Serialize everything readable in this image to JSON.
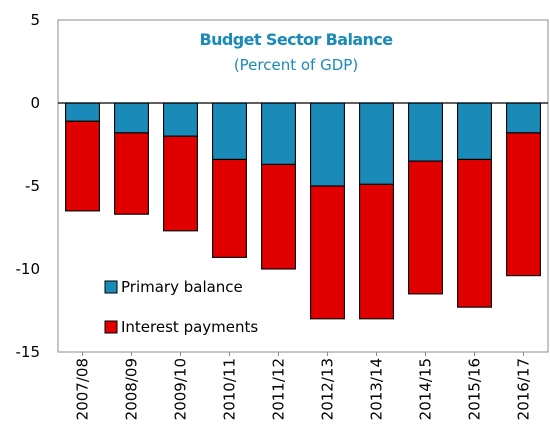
{
  "chart_data": {
    "type": "bar",
    "stacked": true,
    "title": "Budget Sector Balance",
    "subtitle": "(Percent of GDP)",
    "categories": [
      "2007/08",
      "2008/09",
      "2009/10",
      "2010/11",
      "2011/12",
      "2012/13",
      "2013/14",
      "2014/15",
      "2015/16",
      "2016/17"
    ],
    "series": [
      {
        "name": "Primary balance",
        "color": "#1a8ab8",
        "values": [
          -1.1,
          -1.8,
          -2.0,
          -3.4,
          -3.7,
          -5.0,
          -4.9,
          -3.5,
          -3.4,
          -1.8
        ]
      },
      {
        "name": "Interest payments",
        "color": "#e00000",
        "values": [
          -5.4,
          -4.9,
          -5.7,
          -5.9,
          -6.3,
          -8.0,
          -8.1,
          -8.0,
          -8.9,
          -8.6
        ]
      }
    ],
    "ylim": [
      -15,
      5
    ],
    "yticks": [
      5,
      0,
      -5,
      -10,
      -15
    ],
    "grid": false,
    "legend_position": "bottom-left",
    "title_color": "#1a8ab8"
  }
}
